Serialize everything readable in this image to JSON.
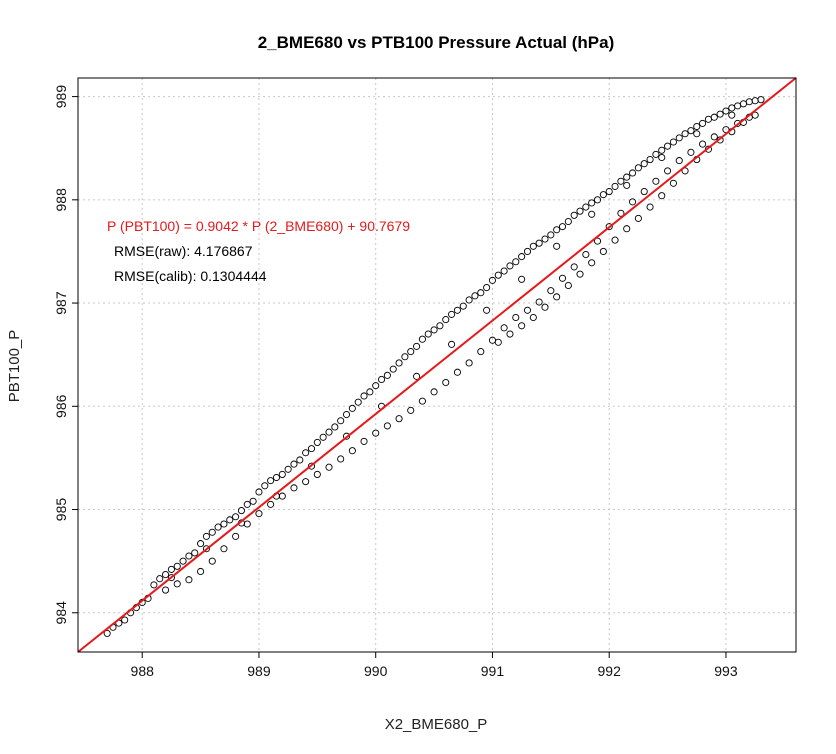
{
  "chart_data": {
    "type": "scatter",
    "title": "2_BME680 vs PTB100 Pressure Actual (hPa)",
    "xlabel": "X2_BME680_P",
    "ylabel": "PBT100_P",
    "xlim": [
      987.45,
      993.6
    ],
    "ylim": [
      983.62,
      989.18
    ],
    "xticks": [
      988,
      989,
      990,
      991,
      992,
      993
    ],
    "yticks": [
      984,
      985,
      986,
      987,
      988,
      989
    ],
    "grid": true,
    "fit_line": {
      "slope": 0.9042,
      "intercept": 90.7679,
      "color": "#e41a1c"
    },
    "annotations": [
      {
        "text": "P (PBT100) = 0.9042  * P (2_BME680)  + 90.7679",
        "color": "#e41a1c"
      },
      {
        "text": "RMSE(raw): 4.176867",
        "color": "#000000"
      },
      {
        "text": "RMSE(calib): 0.1304444",
        "color": "#000000"
      }
    ],
    "series": [
      {
        "marker": "open-circle",
        "color": "#000000",
        "x": [
          987.7,
          987.75,
          987.8,
          987.85,
          987.9,
          987.95,
          988.0,
          988.05,
          988.1,
          988.15,
          988.2,
          988.25,
          988.3,
          988.35,
          988.4,
          988.45,
          988.5,
          988.55,
          988.6,
          988.65,
          988.7,
          988.75,
          988.8,
          988.85,
          988.9,
          988.95,
          989.0,
          989.05,
          989.1,
          989.15,
          989.2,
          989.25,
          989.3,
          989.35,
          989.4,
          989.45,
          989.5,
          989.55,
          989.6,
          989.65,
          989.7,
          989.75,
          989.8,
          989.85,
          989.9,
          989.95,
          990.0,
          990.05,
          990.1,
          990.15,
          990.2,
          990.25,
          990.3,
          990.35,
          990.4,
          990.45,
          990.5,
          990.55,
          990.6,
          990.65,
          990.7,
          990.75,
          990.8,
          990.85,
          990.9,
          990.95,
          991.0,
          991.05,
          991.1,
          991.15,
          991.2,
          991.25,
          991.3,
          991.35,
          991.4,
          991.45,
          991.5,
          991.55,
          991.6,
          991.65,
          991.7,
          991.75,
          991.8,
          991.85,
          991.9,
          991.95,
          992.0,
          992.05,
          992.1,
          992.15,
          992.2,
          992.25,
          992.3,
          992.35,
          992.4,
          992.45,
          992.5,
          992.55,
          992.6,
          992.65,
          992.7,
          992.75,
          992.8,
          992.85,
          992.9,
          992.95,
          993.0,
          993.05,
          993.1,
          993.15,
          993.2,
          993.25,
          993.3,
          988.2,
          988.3,
          988.4,
          988.5,
          988.6,
          988.7,
          988.8,
          988.9,
          989.0,
          989.1,
          989.2,
          989.3,
          989.4,
          989.5,
          989.6,
          989.7,
          989.8,
          989.9,
          990.0,
          990.1,
          990.2,
          990.3,
          990.4,
          990.5,
          990.6,
          990.7,
          990.8,
          990.9,
          991.0,
          991.1,
          991.2,
          991.3,
          991.4,
          991.5,
          991.6,
          991.7,
          991.8,
          991.9,
          992.0,
          992.1,
          992.2,
          992.3,
          992.4,
          992.5,
          992.6,
          992.7,
          992.8,
          992.9,
          993.0,
          993.1,
          993.2,
          991.05,
          991.15,
          991.25,
          991.35,
          991.45,
          991.55,
          991.65,
          991.75,
          991.85,
          991.95,
          992.05,
          992.15,
          992.25,
          992.35,
          992.45,
          992.55,
          992.65,
          992.75,
          992.85,
          992.95,
          993.05,
          993.15,
          993.25,
          988.25,
          988.55,
          988.85,
          989.15,
          989.45,
          989.75,
          990.05,
          990.35,
          990.65,
          990.95,
          991.25,
          991.55,
          991.85,
          992.15,
          992.45,
          992.75,
          993.05
        ],
        "y": [
          983.8,
          983.86,
          983.9,
          983.93,
          984.0,
          984.05,
          984.1,
          984.14,
          984.27,
          984.33,
          984.37,
          984.42,
          984.45,
          984.5,
          984.55,
          984.58,
          984.67,
          984.74,
          984.78,
          984.83,
          984.86,
          984.9,
          984.93,
          984.99,
          985.05,
          985.08,
          985.17,
          985.23,
          985.28,
          985.31,
          985.34,
          985.39,
          985.44,
          985.48,
          985.55,
          985.59,
          985.65,
          985.7,
          985.75,
          985.8,
          985.86,
          985.92,
          985.98,
          986.04,
          986.1,
          986.14,
          986.2,
          986.26,
          986.3,
          986.36,
          986.42,
          986.48,
          986.53,
          986.58,
          986.65,
          986.7,
          986.74,
          986.78,
          986.84,
          986.89,
          986.93,
          986.97,
          987.03,
          987.07,
          987.1,
          987.15,
          987.22,
          987.27,
          987.31,
          987.36,
          987.4,
          987.45,
          987.5,
          987.55,
          987.58,
          987.62,
          987.66,
          987.71,
          987.74,
          987.79,
          987.85,
          987.89,
          987.93,
          987.97,
          988.0,
          988.05,
          988.08,
          988.13,
          988.18,
          988.22,
          988.26,
          988.31,
          988.35,
          988.39,
          988.44,
          988.48,
          988.52,
          988.56,
          988.6,
          988.64,
          988.67,
          988.71,
          988.74,
          988.78,
          988.8,
          988.83,
          988.86,
          988.89,
          988.91,
          988.93,
          988.95,
          988.96,
          988.97,
          984.22,
          984.28,
          984.32,
          984.4,
          984.5,
          984.62,
          984.74,
          984.86,
          984.96,
          985.05,
          985.13,
          985.21,
          985.27,
          985.34,
          985.41,
          985.49,
          985.57,
          985.66,
          985.74,
          985.81,
          985.88,
          985.96,
          986.05,
          986.14,
          986.23,
          986.33,
          986.42,
          986.53,
          986.64,
          986.76,
          986.86,
          986.93,
          987.01,
          987.12,
          987.24,
          987.35,
          987.47,
          987.6,
          987.74,
          987.87,
          987.98,
          988.08,
          988.18,
          988.28,
          988.38,
          988.46,
          988.54,
          988.61,
          988.68,
          988.74,
          988.8,
          986.62,
          986.7,
          986.78,
          986.86,
          986.96,
          987.06,
          987.17,
          987.28,
          987.39,
          987.5,
          987.61,
          987.72,
          987.82,
          987.93,
          988.04,
          988.16,
          988.28,
          988.39,
          988.49,
          988.58,
          988.66,
          988.75,
          988.82,
          984.34,
          984.62,
          984.87,
          985.13,
          985.42,
          985.71,
          986.0,
          986.29,
          986.6,
          986.93,
          987.23,
          987.55,
          987.86,
          988.14,
          988.41,
          988.64,
          988.82
        ]
      }
    ]
  }
}
